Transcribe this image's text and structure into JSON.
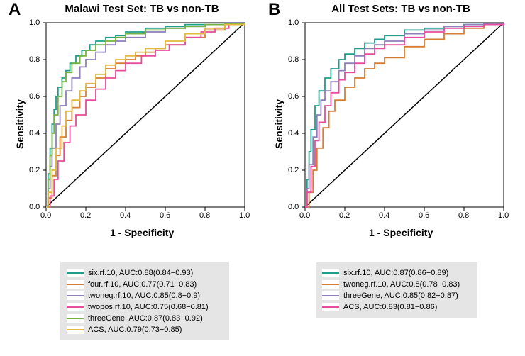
{
  "panelA": {
    "letter": "A",
    "title": "Malawi Test Set: TB vs non-TB",
    "xlabel": "1 - Specificity",
    "ylabel": "Sensitivity",
    "xlim": [
      0,
      1
    ],
    "ylim": [
      0,
      1
    ],
    "ticks": [
      0.0,
      0.2,
      0.4,
      0.6,
      0.8,
      1.0
    ],
    "plot_bg": "#ffffff",
    "axis_color": "#000000",
    "identity_color": "#000000",
    "legend_bg": "#e5e5e5",
    "series": [
      {
        "name": "six.rf.10",
        "label": "six.rf.10, AUC:0.88(0.84−0.93)",
        "color": "#1f9e8a",
        "points": [
          [
            0,
            0
          ],
          [
            0.01,
            0.18
          ],
          [
            0.02,
            0.32
          ],
          [
            0.03,
            0.45
          ],
          [
            0.04,
            0.53
          ],
          [
            0.05,
            0.6
          ],
          [
            0.06,
            0.65
          ],
          [
            0.08,
            0.7
          ],
          [
            0.1,
            0.74
          ],
          [
            0.12,
            0.78
          ],
          [
            0.15,
            0.82
          ],
          [
            0.18,
            0.85
          ],
          [
            0.22,
            0.88
          ],
          [
            0.25,
            0.9
          ],
          [
            0.3,
            0.92
          ],
          [
            0.35,
            0.93
          ],
          [
            0.4,
            0.95
          ],
          [
            0.5,
            0.97
          ],
          [
            0.6,
            0.98
          ],
          [
            0.7,
            0.99
          ],
          [
            0.8,
            0.99
          ],
          [
            0.9,
            1.0
          ],
          [
            1.0,
            1.0
          ]
        ]
      },
      {
        "name": "four.rf.10",
        "label": "four.rf.10, AUC:0.77(0.71−0.83)",
        "color": "#d67d36",
        "points": [
          [
            0,
            0
          ],
          [
            0.01,
            0.05
          ],
          [
            0.03,
            0.17
          ],
          [
            0.05,
            0.28
          ],
          [
            0.07,
            0.38
          ],
          [
            0.1,
            0.47
          ],
          [
            0.13,
            0.54
          ],
          [
            0.17,
            0.6
          ],
          [
            0.2,
            0.65
          ],
          [
            0.25,
            0.7
          ],
          [
            0.3,
            0.75
          ],
          [
            0.35,
            0.78
          ],
          [
            0.4,
            0.8
          ],
          [
            0.45,
            0.82
          ],
          [
            0.5,
            0.84
          ],
          [
            0.55,
            0.86
          ],
          [
            0.6,
            0.88
          ],
          [
            0.7,
            0.92
          ],
          [
            0.8,
            0.96
          ],
          [
            0.9,
            0.99
          ],
          [
            1.0,
            1.0
          ]
        ]
      },
      {
        "name": "twoneg.rf.10",
        "label": "twoneg.rf.10, AUC:0.85(0.8−0.9)",
        "color": "#8e7fba",
        "points": [
          [
            0,
            0
          ],
          [
            0.01,
            0.1
          ],
          [
            0.02,
            0.22
          ],
          [
            0.03,
            0.32
          ],
          [
            0.05,
            0.45
          ],
          [
            0.07,
            0.55
          ],
          [
            0.1,
            0.63
          ],
          [
            0.13,
            0.7
          ],
          [
            0.17,
            0.76
          ],
          [
            0.2,
            0.8
          ],
          [
            0.25,
            0.84
          ],
          [
            0.3,
            0.88
          ],
          [
            0.35,
            0.9
          ],
          [
            0.4,
            0.92
          ],
          [
            0.5,
            0.95
          ],
          [
            0.6,
            0.97
          ],
          [
            0.7,
            0.98
          ],
          [
            0.8,
            0.99
          ],
          [
            0.9,
            1.0
          ],
          [
            1.0,
            1.0
          ]
        ]
      },
      {
        "name": "twopos.rf.10",
        "label": "twopos.rf.10, AUC:0.75(0.68−0.81)",
        "color": "#e64d9d",
        "points": [
          [
            0,
            0
          ],
          [
            0.02,
            0.06
          ],
          [
            0.04,
            0.15
          ],
          [
            0.06,
            0.25
          ],
          [
            0.09,
            0.35
          ],
          [
            0.12,
            0.44
          ],
          [
            0.15,
            0.5
          ],
          [
            0.2,
            0.58
          ],
          [
            0.25,
            0.64
          ],
          [
            0.3,
            0.7
          ],
          [
            0.35,
            0.74
          ],
          [
            0.4,
            0.78
          ],
          [
            0.48,
            0.82
          ],
          [
            0.55,
            0.85
          ],
          [
            0.62,
            0.88
          ],
          [
            0.7,
            0.92
          ],
          [
            0.78,
            0.95
          ],
          [
            0.85,
            0.97
          ],
          [
            0.92,
            0.99
          ],
          [
            1.0,
            1.0
          ]
        ]
      },
      {
        "name": "threeGene",
        "label": "threeGene, AUC:0.87(0.83−0.92)",
        "color": "#76b340",
        "points": [
          [
            0,
            0
          ],
          [
            0.01,
            0.15
          ],
          [
            0.02,
            0.28
          ],
          [
            0.03,
            0.4
          ],
          [
            0.04,
            0.5
          ],
          [
            0.06,
            0.6
          ],
          [
            0.08,
            0.68
          ],
          [
            0.1,
            0.73
          ],
          [
            0.13,
            0.78
          ],
          [
            0.17,
            0.82
          ],
          [
            0.2,
            0.85
          ],
          [
            0.25,
            0.88
          ],
          [
            0.3,
            0.9
          ],
          [
            0.35,
            0.92
          ],
          [
            0.4,
            0.94
          ],
          [
            0.5,
            0.96
          ],
          [
            0.6,
            0.97
          ],
          [
            0.7,
            0.98
          ],
          [
            0.8,
            0.99
          ],
          [
            0.9,
            0.995
          ],
          [
            1.0,
            1.0
          ]
        ]
      },
      {
        "name": "ACS",
        "label": "ACS, AUC:0.79(0.73−0.85)",
        "color": "#e3b83f",
        "points": [
          [
            0,
            0
          ],
          [
            0.01,
            0.08
          ],
          [
            0.03,
            0.2
          ],
          [
            0.05,
            0.32
          ],
          [
            0.08,
            0.44
          ],
          [
            0.1,
            0.52
          ],
          [
            0.13,
            0.58
          ],
          [
            0.17,
            0.63
          ],
          [
            0.2,
            0.67
          ],
          [
            0.25,
            0.72
          ],
          [
            0.3,
            0.77
          ],
          [
            0.35,
            0.8
          ],
          [
            0.4,
            0.82
          ],
          [
            0.45,
            0.84
          ],
          [
            0.5,
            0.86
          ],
          [
            0.6,
            0.9
          ],
          [
            0.7,
            0.94
          ],
          [
            0.8,
            0.97
          ],
          [
            0.9,
            0.99
          ],
          [
            1.0,
            1.0
          ]
        ]
      }
    ]
  },
  "panelB": {
    "letter": "B",
    "title": "All Test Sets: TB vs non-TB",
    "xlabel": "1 - Specificity",
    "ylabel": "Sensitivity",
    "xlim": [
      0,
      1
    ],
    "ylim": [
      0,
      1
    ],
    "ticks": [
      0.0,
      0.2,
      0.4,
      0.6,
      0.8,
      1.0
    ],
    "plot_bg": "#ffffff",
    "axis_color": "#000000",
    "identity_color": "#000000",
    "legend_bg": "#e5e5e5",
    "series": [
      {
        "name": "six.rf.10",
        "label": "six.rf.10, AUC:0.87(0.86−0.89)",
        "color": "#1f9e8a",
        "points": [
          [
            0,
            0
          ],
          [
            0.01,
            0.15
          ],
          [
            0.02,
            0.3
          ],
          [
            0.03,
            0.42
          ],
          [
            0.05,
            0.55
          ],
          [
            0.07,
            0.63
          ],
          [
            0.1,
            0.7
          ],
          [
            0.13,
            0.75
          ],
          [
            0.17,
            0.8
          ],
          [
            0.2,
            0.83
          ],
          [
            0.25,
            0.86
          ],
          [
            0.3,
            0.89
          ],
          [
            0.35,
            0.91
          ],
          [
            0.4,
            0.93
          ],
          [
            0.5,
            0.96
          ],
          [
            0.6,
            0.97
          ],
          [
            0.7,
            0.98
          ],
          [
            0.8,
            0.99
          ],
          [
            0.9,
            0.995
          ],
          [
            1.0,
            1.0
          ]
        ]
      },
      {
        "name": "twoneg.rf.10",
        "label": "twoneg.rf.10, AUC:0.8(0.78−0.83)",
        "color": "#d67d36",
        "points": [
          [
            0,
            0
          ],
          [
            0.02,
            0.08
          ],
          [
            0.04,
            0.2
          ],
          [
            0.06,
            0.32
          ],
          [
            0.09,
            0.43
          ],
          [
            0.12,
            0.52
          ],
          [
            0.15,
            0.58
          ],
          [
            0.2,
            0.65
          ],
          [
            0.25,
            0.7
          ],
          [
            0.3,
            0.75
          ],
          [
            0.35,
            0.78
          ],
          [
            0.4,
            0.81
          ],
          [
            0.5,
            0.87
          ],
          [
            0.6,
            0.91
          ],
          [
            0.7,
            0.94
          ],
          [
            0.8,
            0.97
          ],
          [
            0.9,
            0.99
          ],
          [
            1.0,
            1.0
          ]
        ]
      },
      {
        "name": "threeGene",
        "label": "threeGene, AUC:0.85(0.82−0.87)",
        "color": "#8e7fba",
        "points": [
          [
            0,
            0
          ],
          [
            0.01,
            0.1
          ],
          [
            0.02,
            0.23
          ],
          [
            0.04,
            0.38
          ],
          [
            0.06,
            0.5
          ],
          [
            0.08,
            0.58
          ],
          [
            0.1,
            0.63
          ],
          [
            0.13,
            0.68
          ],
          [
            0.17,
            0.74
          ],
          [
            0.2,
            0.78
          ],
          [
            0.25,
            0.82
          ],
          [
            0.3,
            0.86
          ],
          [
            0.35,
            0.88
          ],
          [
            0.4,
            0.9
          ],
          [
            0.5,
            0.94
          ],
          [
            0.6,
            0.96
          ],
          [
            0.7,
            0.98
          ],
          [
            0.8,
            0.99
          ],
          [
            0.9,
            0.995
          ],
          [
            1.0,
            1.0
          ]
        ]
      },
      {
        "name": "ACS",
        "label": "ACS, AUC:0.83(0.81−0.86)",
        "color": "#e64d9d",
        "points": [
          [
            0,
            0
          ],
          [
            0.01,
            0.08
          ],
          [
            0.03,
            0.22
          ],
          [
            0.05,
            0.36
          ],
          [
            0.07,
            0.46
          ],
          [
            0.1,
            0.55
          ],
          [
            0.13,
            0.62
          ],
          [
            0.17,
            0.69
          ],
          [
            0.2,
            0.73
          ],
          [
            0.25,
            0.78
          ],
          [
            0.3,
            0.83
          ],
          [
            0.35,
            0.86
          ],
          [
            0.4,
            0.88
          ],
          [
            0.5,
            0.92
          ],
          [
            0.6,
            0.95
          ],
          [
            0.7,
            0.97
          ],
          [
            0.8,
            0.98
          ],
          [
            0.9,
            0.99
          ],
          [
            1.0,
            1.0
          ]
        ]
      }
    ]
  }
}
